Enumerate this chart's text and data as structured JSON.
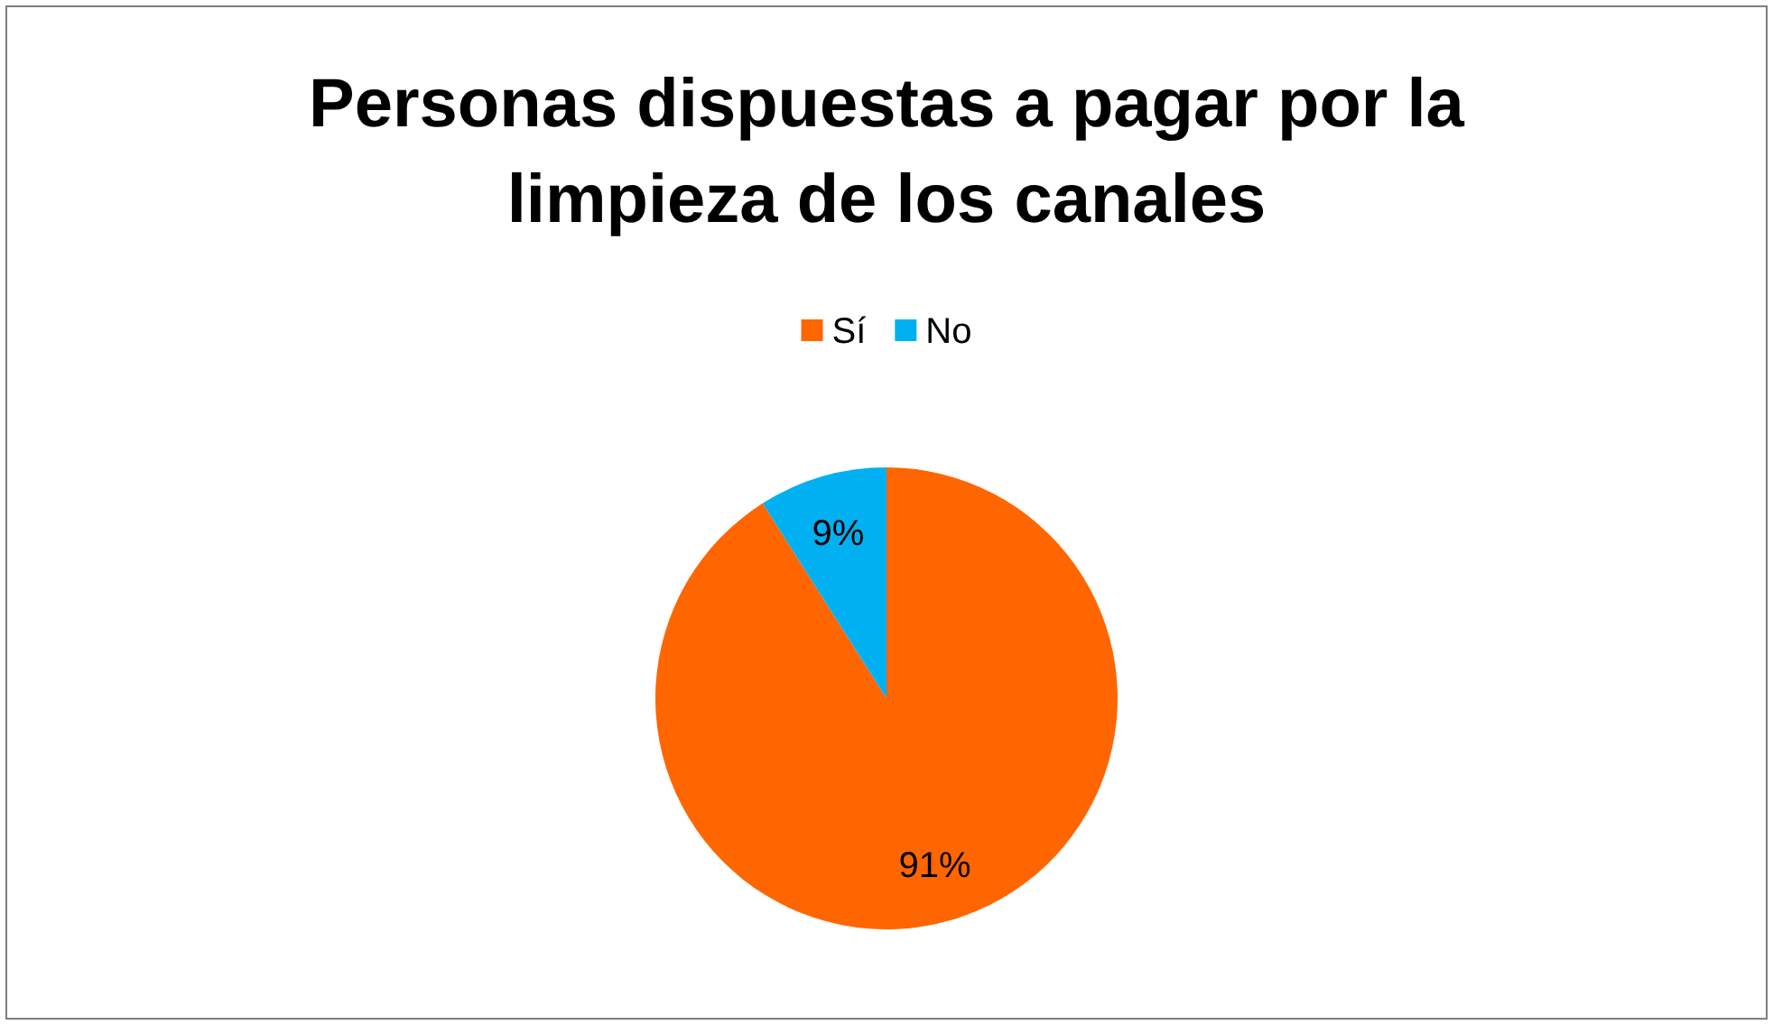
{
  "chart_data": {
    "type": "pie",
    "title": "Personas dispuestas a pagar por la limpieza de los canales",
    "categories": [
      "Sí",
      "No"
    ],
    "values": [
      91,
      9
    ],
    "colors": [
      "#ff6600",
      "#00b0f0"
    ],
    "value_labels": [
      "91%",
      "9%"
    ],
    "legend": "top"
  }
}
